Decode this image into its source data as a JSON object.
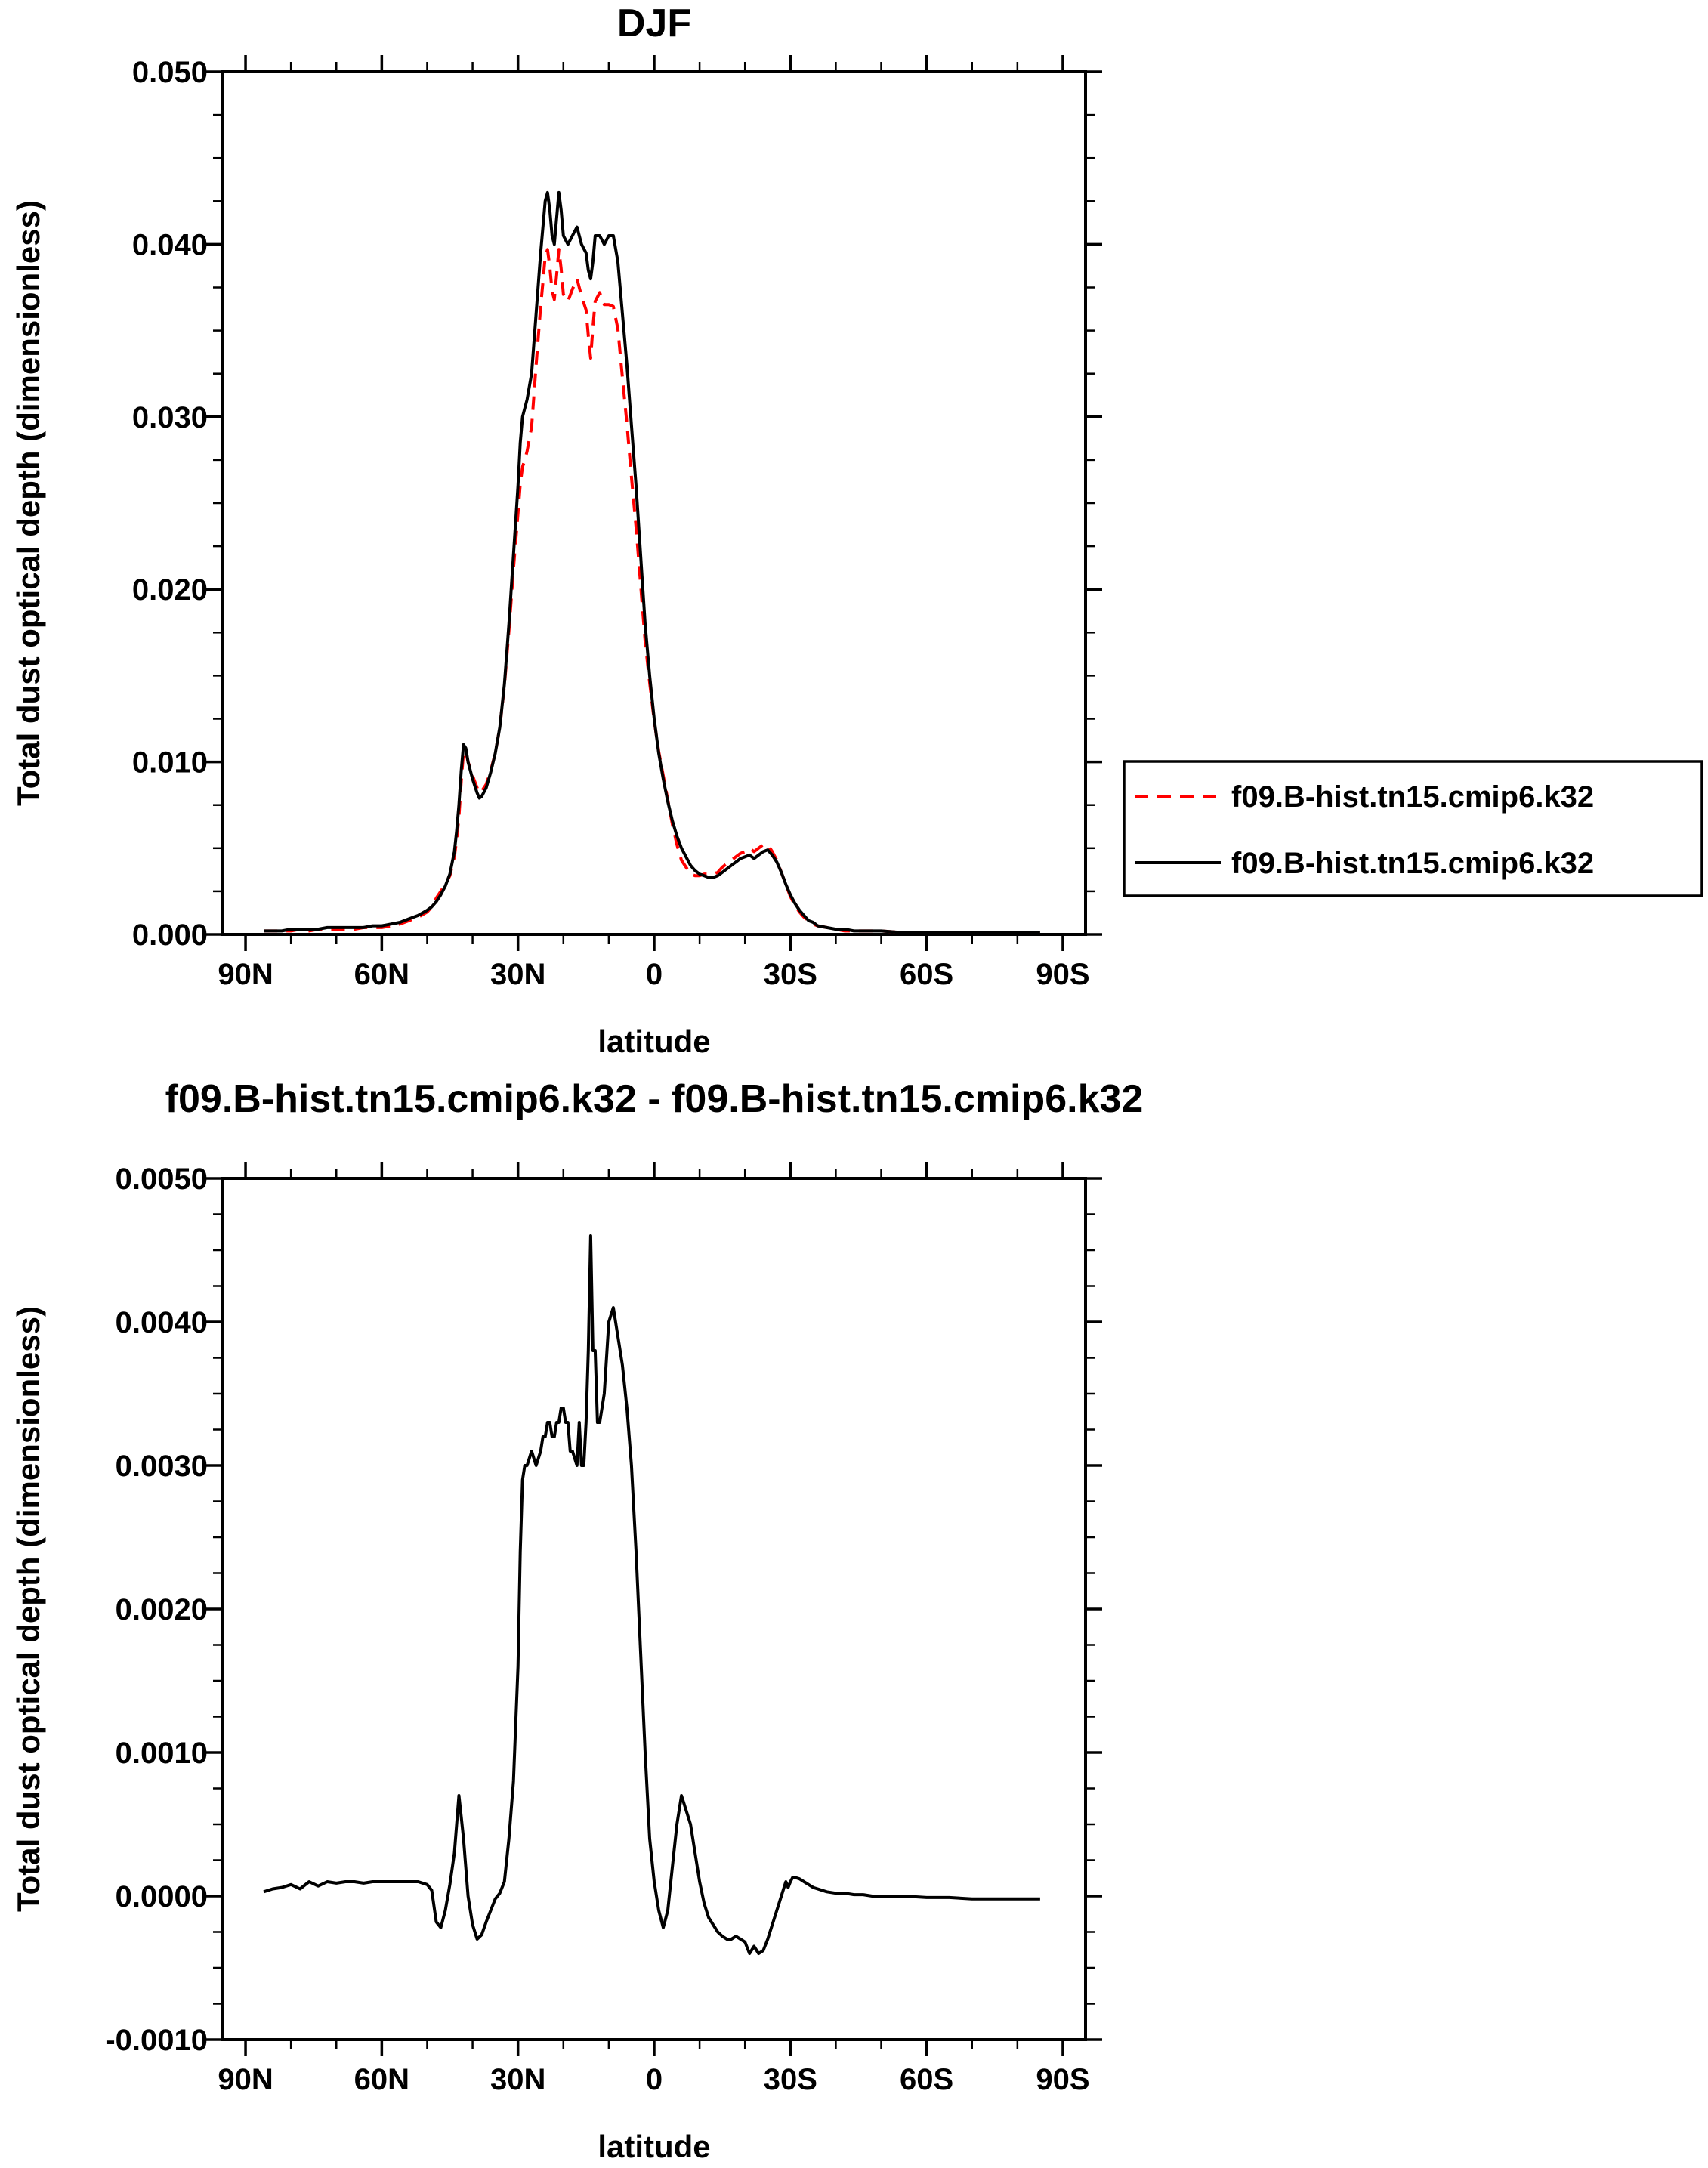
{
  "figure": {
    "background": "#ffffff",
    "curve_colors": {
      "red": "#ff0000",
      "black": "#000000"
    }
  },
  "chart_data": [
    {
      "id": "djf",
      "type": "line",
      "title": "DJF",
      "xlabel": "latitude",
      "ylabel": "Total dust optical depth (dimensionless)",
      "xlim": [
        95,
        -95
      ],
      "ylim": [
        0,
        0.05
      ],
      "xticks": {
        "values": [
          90,
          60,
          30,
          0,
          -30,
          -60,
          -90
        ],
        "labels": [
          "90N",
          "60N",
          "30N",
          "0",
          "30S",
          "60S",
          "90S"
        ],
        "minor_step": 10
      },
      "yticks": {
        "values": [
          0,
          0.01,
          0.02,
          0.03,
          0.04,
          0.05
        ],
        "labels": [
          "0.000",
          "0.010",
          "0.020",
          "0.030",
          "0.040",
          "0.050"
        ],
        "minor_count": 3
      },
      "x": [
        86,
        84,
        82,
        80,
        78,
        76,
        74,
        72,
        70,
        68,
        66,
        64,
        62,
        60,
        58,
        56,
        54,
        52,
        50,
        49,
        48,
        47,
        46,
        45,
        44,
        43.5,
        43,
        42.5,
        42,
        41.5,
        41,
        40,
        39,
        38.5,
        38,
        37,
        36,
        35,
        34,
        33,
        32,
        31,
        30,
        29.5,
        29,
        28.5,
        28,
        27,
        26,
        25,
        24.5,
        24,
        23.5,
        23,
        22.5,
        22,
        21.5,
        21,
        20.5,
        20,
        19,
        18,
        17,
        16,
        15,
        14.5,
        14,
        13.5,
        13,
        12,
        11,
        10,
        9,
        8,
        7,
        6,
        5,
        4,
        3,
        2,
        1,
        0,
        -1,
        -2,
        -3,
        -4,
        -5,
        -6,
        -7,
        -8,
        -9,
        -10,
        -11,
        -12,
        -13,
        -14,
        -15,
        -16,
        -17,
        -18,
        -19,
        -20,
        -21,
        -22,
        -23,
        -24,
        -25,
        -26,
        -27,
        -28,
        -29,
        -30,
        -31,
        -32,
        -33,
        -34,
        -35,
        -36,
        -38,
        -40,
        -42,
        -44,
        -46,
        -48,
        -50,
        -55,
        -60,
        -65,
        -70,
        -75,
        -80,
        -85
      ],
      "series": [
        {
          "name": "f09.B-hist.tn15.cmip6.k32",
          "color": "#ff0000",
          "linestyle": "dashed",
          "y": [
            0.0002,
            0.0002,
            0.0002,
            0.0002,
            0.0003,
            0.0002,
            0.0003,
            0.0003,
            0.0003,
            0.0003,
            0.0003,
            0.0004,
            0.0004,
            0.0004,
            0.0005,
            0.0006,
            0.0008,
            0.001,
            0.0013,
            0.0016,
            0.0021,
            0.0025,
            0.0029,
            0.0034,
            0.0045,
            0.0055,
            0.0068,
            0.0089,
            0.0106,
            0.0106,
            0.01,
            0.0092,
            0.0085,
            0.0082,
            0.0083,
            0.0087,
            0.0095,
            0.0105,
            0.012,
            0.0144,
            0.0176,
            0.0212,
            0.0244,
            0.0261,
            0.0271,
            0.0275,
            0.028,
            0.0294,
            0.033,
            0.0364,
            0.0378,
            0.0393,
            0.0397,
            0.0387,
            0.0373,
            0.0368,
            0.0382,
            0.0397,
            0.0386,
            0.0371,
            0.0367,
            0.0374,
            0.038,
            0.037,
            0.0362,
            0.0347,
            0.0334,
            0.0352,
            0.0367,
            0.0372,
            0.0365,
            0.0365,
            0.0364,
            0.0351,
            0.0323,
            0.0296,
            0.0265,
            0.0236,
            0.0203,
            0.017,
            0.0146,
            0.0124,
            0.0106,
            0.0092,
            0.0078,
            0.0064,
            0.0052,
            0.0043,
            0.0039,
            0.0035,
            0.0034,
            0.0034,
            0.0035,
            0.0035,
            0.0035,
            0.0036,
            0.0039,
            0.0041,
            0.0043,
            0.0045,
            0.0047,
            0.0048,
            0.005,
            0.0048,
            0.005,
            0.0052,
            0.0052,
            0.0048,
            0.0043,
            0.0036,
            0.0029,
            0.0022,
            0.0017,
            0.0013,
            0.001,
            0.0008,
            0.0006,
            0.0005,
            0.0004,
            0.0003,
            0.0002,
            0.0002,
            0.0002,
            0.0002,
            0.0002,
            0.0001,
            0.0001,
            0.0001,
            0.0001,
            0.0001,
            0.0001,
            0.0001
          ]
        },
        {
          "name": "f09.B-hist.tn15.cmip6.k32",
          "color": "#000000",
          "linestyle": "solid",
          "y": [
            0.0002,
            0.0002,
            0.0002,
            0.0003,
            0.0003,
            0.0003,
            0.0003,
            0.0004,
            0.0004,
            0.0004,
            0.0004,
            0.0004,
            0.0005,
            0.0005,
            0.0006,
            0.0007,
            0.0009,
            0.0011,
            0.0014,
            0.0016,
            0.0019,
            0.0023,
            0.0028,
            0.0035,
            0.0048,
            0.006,
            0.0075,
            0.0095,
            0.011,
            0.0108,
            0.01,
            0.009,
            0.0082,
            0.0079,
            0.008,
            0.0085,
            0.0094,
            0.0105,
            0.012,
            0.0145,
            0.018,
            0.022,
            0.026,
            0.0285,
            0.03,
            0.0305,
            0.031,
            0.0325,
            0.036,
            0.0395,
            0.041,
            0.0425,
            0.043,
            0.042,
            0.0405,
            0.04,
            0.0415,
            0.043,
            0.042,
            0.0405,
            0.04,
            0.0405,
            0.041,
            0.04,
            0.0395,
            0.0385,
            0.038,
            0.039,
            0.0405,
            0.0405,
            0.04,
            0.0405,
            0.0405,
            0.039,
            0.036,
            0.033,
            0.0295,
            0.026,
            0.022,
            0.018,
            0.015,
            0.0125,
            0.0105,
            0.009,
            0.0077,
            0.0066,
            0.0057,
            0.005,
            0.0045,
            0.004,
            0.0037,
            0.0035,
            0.0034,
            0.0033,
            0.0033,
            0.0034,
            0.0036,
            0.0038,
            0.004,
            0.0042,
            0.0044,
            0.0045,
            0.0046,
            0.0044,
            0.0046,
            0.0048,
            0.0049,
            0.0046,
            0.0042,
            0.0036,
            0.0029,
            0.0023,
            0.0018,
            0.0014,
            0.0011,
            0.0008,
            0.0007,
            0.0005,
            0.0004,
            0.0003,
            0.0003,
            0.0002,
            0.0002,
            0.0002,
            0.0002,
            0.0001,
            0.0001,
            0.0001,
            0.0001,
            0.0001,
            0.0001,
            0.0001
          ]
        }
      ],
      "legend": {
        "position": "right-bottom",
        "entries": [
          {
            "label": "f09.B-hist.tn15.cmip6.k32",
            "color": "#ff0000",
            "linestyle": "dashed"
          },
          {
            "label": "f09.B-hist.tn15.cmip6.k32",
            "color": "#000000",
            "linestyle": "solid"
          }
        ]
      }
    },
    {
      "id": "difference",
      "type": "line",
      "title": "f09.B-hist.tn15.cmip6.k32 - f09.B-hist.tn15.cmip6.k32",
      "xlabel": "latitude",
      "ylabel": "Total dust optical depth (dimensionless)",
      "xlim": [
        95,
        -95
      ],
      "ylim": [
        -0.001,
        0.005
      ],
      "xticks": {
        "values": [
          90,
          60,
          30,
          0,
          -30,
          -60,
          -90
        ],
        "labels": [
          "90N",
          "60N",
          "30N",
          "0",
          "30S",
          "60S",
          "90S"
        ],
        "minor_step": 10
      },
      "yticks": {
        "values": [
          -0.001,
          0,
          0.001,
          0.002,
          0.003,
          0.004,
          0.005
        ],
        "labels": [
          "-0.0010",
          "0.0000",
          "0.0010",
          "0.0020",
          "0.0030",
          "0.0040",
          "0.0050"
        ],
        "minor_count": 3
      },
      "x": [
        86,
        84,
        82,
        80,
        78,
        76,
        74,
        72,
        70,
        68,
        66,
        64,
        62,
        60,
        58,
        56,
        54,
        52,
        50,
        49,
        48,
        47,
        46,
        45,
        44,
        43.5,
        43,
        42.5,
        42,
        41,
        40,
        39,
        38,
        37,
        36,
        35,
        34,
        33,
        32,
        31,
        30,
        29.5,
        29,
        28.5,
        28,
        27,
        26,
        25,
        24.5,
        24,
        23.5,
        23,
        22.5,
        22,
        21.5,
        21,
        20.5,
        20,
        19.5,
        19,
        18.5,
        18,
        17,
        16.5,
        16,
        15.5,
        15,
        14.5,
        14,
        13.5,
        13,
        12.5,
        12,
        11,
        10,
        9,
        8,
        7,
        6,
        5,
        4,
        3,
        2,
        1,
        0,
        -1,
        -2,
        -3,
        -4,
        -5,
        -6,
        -7,
        -8,
        -9,
        -10,
        -11,
        -12,
        -13,
        -14,
        -15,
        -16,
        -17,
        -18,
        -19,
        -20,
        -21,
        -22,
        -23,
        -24,
        -25,
        -26,
        -27,
        -28,
        -28.5,
        -29,
        -29.5,
        -30,
        -30.5,
        -31,
        -32,
        -33,
        -34,
        -35,
        -36,
        -38,
        -40,
        -42,
        -44,
        -46,
        -48,
        -50,
        -55,
        -60,
        -65,
        -70,
        -75,
        -80,
        -85
      ],
      "series": [
        {
          "name": "f09.B-hist.tn15.cmip6.k32 - f09.B-hist.tn15.cmip6.k32",
          "color": "#000000",
          "linestyle": "solid",
          "y": [
            3e-05,
            5e-05,
            6e-05,
            8e-05,
            5e-05,
            0.0001,
            7e-05,
            0.0001,
            9e-05,
            0.0001,
            0.0001,
            9e-05,
            0.0001,
            0.0001,
            0.0001,
            0.0001,
            0.0001,
            0.0001,
            8e-05,
            4e-05,
            -0.00018,
            -0.00022,
            -0.0001,
            8e-05,
            0.0003,
            0.0005,
            0.0007,
            0.00055,
            0.0004,
            0.0,
            -0.0002,
            -0.0003,
            -0.00027,
            -0.00018,
            -0.0001,
            -2e-05,
            2e-05,
            0.0001,
            0.0004,
            0.0008,
            0.0016,
            0.0024,
            0.0029,
            0.003,
            0.003,
            0.0031,
            0.003,
            0.0031,
            0.0032,
            0.0032,
            0.0033,
            0.0033,
            0.0032,
            0.0032,
            0.0033,
            0.0033,
            0.0034,
            0.0034,
            0.0033,
            0.0033,
            0.0031,
            0.0031,
            0.003,
            0.0033,
            0.003,
            0.003,
            0.0033,
            0.0038,
            0.0046,
            0.0038,
            0.0038,
            0.0033,
            0.0033,
            0.0035,
            0.004,
            0.0041,
            0.0039,
            0.0037,
            0.0034,
            0.003,
            0.0024,
            0.0017,
            0.001,
            0.0004,
            0.0001,
            -0.0001,
            -0.00022,
            -0.0001,
            0.0002,
            0.0005,
            0.0007,
            0.0006,
            0.0005,
            0.0003,
            0.0001,
            -5e-05,
            -0.00015,
            -0.0002,
            -0.00025,
            -0.00028,
            -0.0003,
            -0.0003,
            -0.00028,
            -0.0003,
            -0.00032,
            -0.0004,
            -0.00035,
            -0.0004,
            -0.00038,
            -0.0003,
            -0.0002,
            -0.0001,
            0.0,
            5e-05,
            0.0001,
            6e-05,
            0.0001,
            0.00013,
            0.00013,
            0.00012,
            0.0001,
            8e-05,
            6e-05,
            5e-05,
            3e-05,
            2e-05,
            2e-05,
            1e-05,
            1e-05,
            0.0,
            0.0,
            0.0,
            -1e-05,
            -1e-05,
            -2e-05,
            -2e-05,
            -2e-05,
            -2e-05
          ]
        }
      ]
    }
  ]
}
